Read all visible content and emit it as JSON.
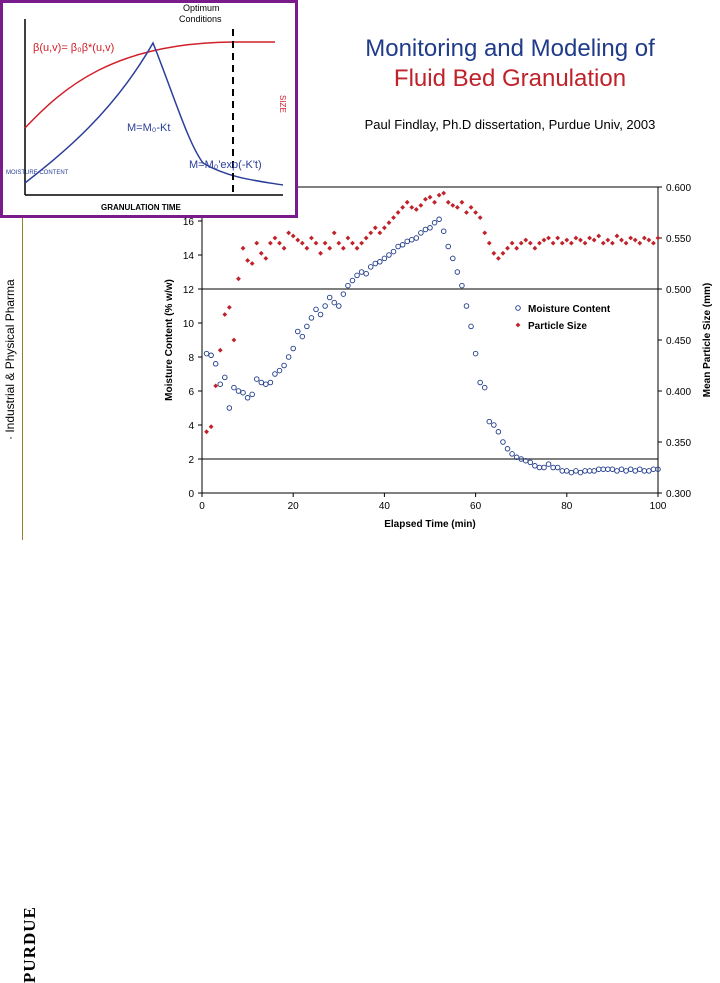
{
  "sidebar": {
    "label": "· Industrial & Physical Pharma",
    "logo_text": "PURDUE"
  },
  "header": {
    "title_line1": "Monitoring and Modeling of",
    "title_line2": "Fluid Bed Granulation",
    "subtitle": "Paul Findlay, Ph.D dissertation, Purdue Univ, 2003"
  },
  "inset": {
    "optimum_label_1": "Optimum",
    "optimum_label_2": "Conditions",
    "equation_beta": "β(u,v)= β₀β*(u,v)",
    "equation_linear": "M=M₀-Kt",
    "equation_exp": "M=M₀'exp(-K't)",
    "size_label": "SIZE",
    "xlabel": "GRANULATION TIME",
    "left_label": "MOISTURE CONTENT",
    "colors": {
      "growth": "#d0202a",
      "moisture": "#2a3e9a",
      "dashed": "#000000"
    }
  },
  "chart_data": {
    "type": "scatter",
    "xlabel": "Elapsed Time (min)",
    "ylabel": "Moisture Content (% w/w)",
    "y2label": "Mean Particle Size (mm)",
    "xlim": [
      0,
      100
    ],
    "ylim": [
      0,
      18
    ],
    "y2lim": [
      0.3,
      0.6
    ],
    "xticks": [
      "0",
      "20",
      "40",
      "60",
      "80",
      "100"
    ],
    "yticks": [
      "0",
      "2",
      "4",
      "6",
      "8",
      "10",
      "12",
      "14",
      "16"
    ],
    "y2ticks": [
      "0.300",
      "0.350",
      "0.400",
      "0.450",
      "0.500",
      "0.550",
      "0.600"
    ],
    "legend": [
      "Moisture Content",
      "Particle Size"
    ],
    "legend_position": "right",
    "series": [
      {
        "name": "Moisture Content",
        "axis": "left",
        "color": "#1f3b8a",
        "marker": "circle-open",
        "x": [
          1,
          2,
          3,
          4,
          5,
          6,
          7,
          8,
          9,
          10,
          11,
          12,
          13,
          14,
          15,
          16,
          17,
          18,
          19,
          20,
          21,
          22,
          23,
          24,
          25,
          26,
          27,
          28,
          29,
          30,
          31,
          32,
          33,
          34,
          35,
          36,
          37,
          38,
          39,
          40,
          41,
          42,
          43,
          44,
          45,
          46,
          47,
          48,
          49,
          50,
          51,
          52,
          53,
          54,
          55,
          56,
          57,
          58,
          59,
          60,
          61,
          62,
          63,
          64,
          65,
          66,
          67,
          68,
          69,
          70,
          71,
          72,
          73,
          74,
          75,
          76,
          77,
          78,
          79,
          80,
          81,
          82,
          83,
          84,
          85,
          86,
          87,
          88,
          89,
          90,
          91,
          92,
          93,
          94,
          95,
          96,
          97,
          98,
          99,
          100
        ],
        "y": [
          8.2,
          8.1,
          7.6,
          6.4,
          6.8,
          5.0,
          6.2,
          6.0,
          5.9,
          5.6,
          5.8,
          6.7,
          6.5,
          6.4,
          6.5,
          7.0,
          7.2,
          7.5,
          8.0,
          8.5,
          9.5,
          9.2,
          9.8,
          10.3,
          10.8,
          10.5,
          11.0,
          11.5,
          11.2,
          11.0,
          11.7,
          12.2,
          12.5,
          12.8,
          13.0,
          12.9,
          13.3,
          13.5,
          13.6,
          13.8,
          14.0,
          14.2,
          14.5,
          14.6,
          14.8,
          14.9,
          15.0,
          15.3,
          15.5,
          15.6,
          15.9,
          16.1,
          15.4,
          14.5,
          13.8,
          13.0,
          12.2,
          11.0,
          9.8,
          8.2,
          6.5,
          6.2,
          4.2,
          4.0,
          3.6,
          3.0,
          2.6,
          2.3,
          2.1,
          2.0,
          1.9,
          1.8,
          1.6,
          1.5,
          1.5,
          1.7,
          1.5,
          1.5,
          1.3,
          1.3,
          1.2,
          1.3,
          1.2,
          1.3,
          1.3,
          1.3,
          1.4,
          1.4,
          1.4,
          1.4,
          1.3,
          1.4,
          1.3,
          1.4,
          1.3,
          1.4,
          1.3,
          1.3,
          1.4,
          1.4
        ]
      },
      {
        "name": "Particle Size",
        "axis": "right",
        "color": "#c0222a",
        "marker": "diamond",
        "x": [
          1,
          2,
          3,
          4,
          5,
          6,
          7,
          8,
          9,
          10,
          11,
          12,
          13,
          14,
          15,
          16,
          17,
          18,
          19,
          20,
          21,
          22,
          23,
          24,
          25,
          26,
          27,
          28,
          29,
          30,
          31,
          32,
          33,
          34,
          35,
          36,
          37,
          38,
          39,
          40,
          41,
          42,
          43,
          44,
          45,
          46,
          47,
          48,
          49,
          50,
          51,
          52,
          53,
          54,
          55,
          56,
          57,
          58,
          59,
          60,
          61,
          62,
          63,
          64,
          65,
          66,
          67,
          68,
          69,
          70,
          71,
          72,
          73,
          74,
          75,
          76,
          77,
          78,
          79,
          80,
          81,
          82,
          83,
          84,
          85,
          86,
          87,
          88,
          89,
          90,
          91,
          92,
          93,
          94,
          95,
          96,
          97,
          98,
          99,
          100
        ],
        "y": [
          0.36,
          0.365,
          0.405,
          0.44,
          0.475,
          0.482,
          0.45,
          0.51,
          0.54,
          0.528,
          0.525,
          0.545,
          0.535,
          0.53,
          0.545,
          0.55,
          0.545,
          0.54,
          0.555,
          0.552,
          0.548,
          0.545,
          0.54,
          0.55,
          0.545,
          0.535,
          0.545,
          0.54,
          0.555,
          0.545,
          0.54,
          0.55,
          0.545,
          0.54,
          0.545,
          0.55,
          0.555,
          0.56,
          0.555,
          0.56,
          0.565,
          0.57,
          0.575,
          0.58,
          0.585,
          0.58,
          0.578,
          0.582,
          0.588,
          0.59,
          0.585,
          0.592,
          0.594,
          0.585,
          0.582,
          0.58,
          0.585,
          0.575,
          0.58,
          0.575,
          0.57,
          0.555,
          0.545,
          0.535,
          0.53,
          0.535,
          0.54,
          0.545,
          0.54,
          0.545,
          0.548,
          0.545,
          0.54,
          0.545,
          0.548,
          0.55,
          0.545,
          0.55,
          0.545,
          0.548,
          0.545,
          0.55,
          0.548,
          0.545,
          0.55,
          0.548,
          0.552,
          0.545,
          0.548,
          0.545,
          0.552,
          0.548,
          0.545,
          0.55,
          0.548,
          0.545,
          0.55,
          0.548,
          0.545,
          0.55
        ]
      }
    ]
  }
}
